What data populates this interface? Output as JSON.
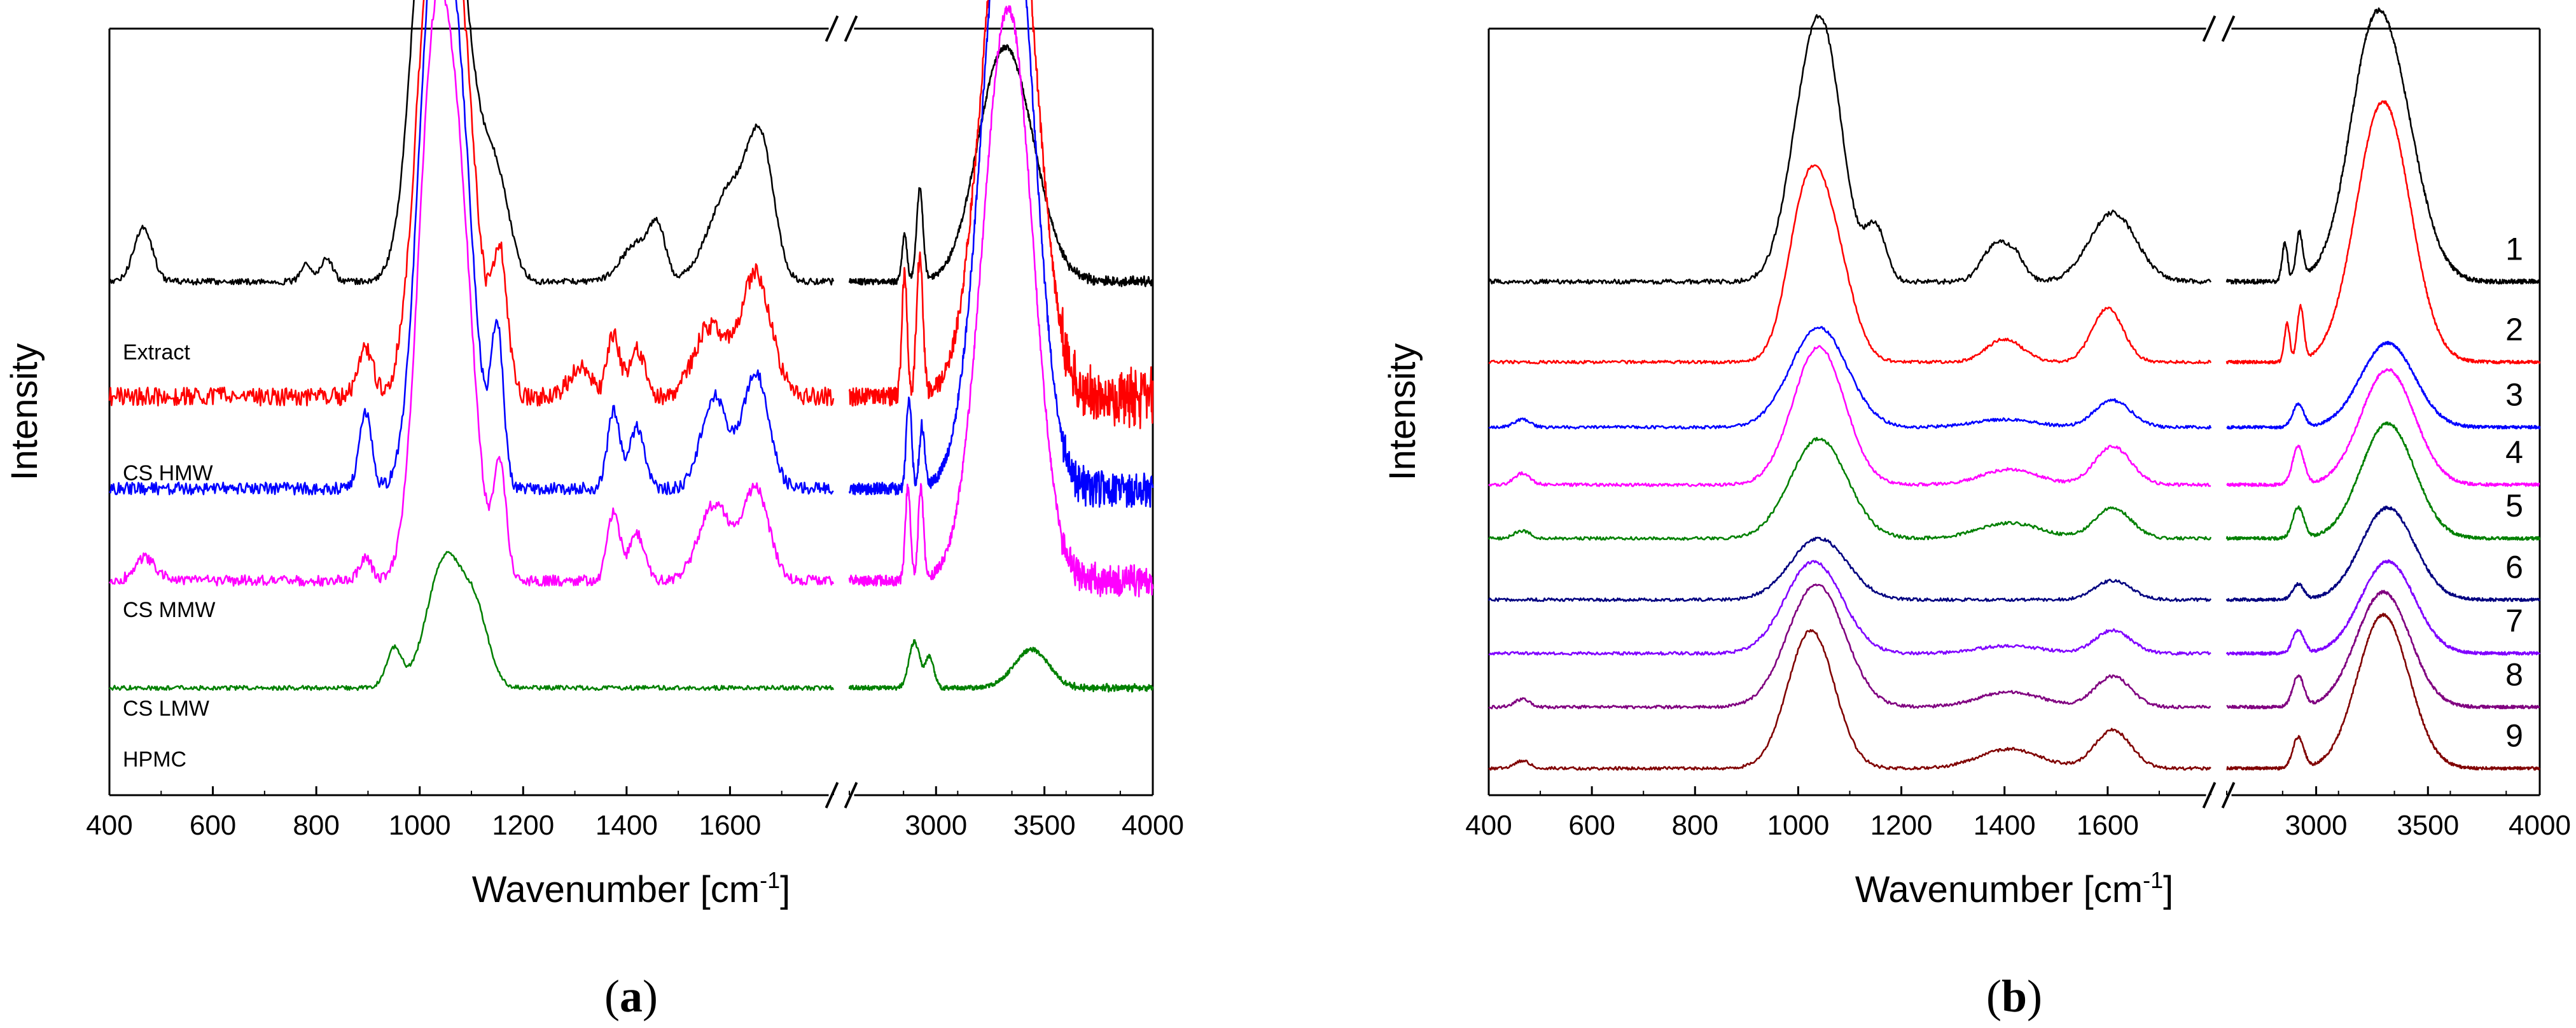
{
  "chart_data": [
    {
      "panel": "(a)",
      "panel_letter": "a",
      "type": "line",
      "xlabel": "Wavenumber [cm",
      "xlabel_sup": "-1",
      "xlabel_end": "]",
      "ylabel": "Intensity",
      "x_segments": [
        {
          "range": [
            400,
            1800
          ],
          "ticks": [
            400,
            600,
            800,
            1000,
            1200,
            1400,
            1600
          ]
        },
        {
          "range": [
            2600,
            4000
          ],
          "ticks": [
            3000,
            3500,
            4000
          ]
        }
      ],
      "axis_break": "//",
      "series": [
        {
          "name": "Extract",
          "color": "#000000",
          "baseline": 0.33,
          "noise": 0.004,
          "peaks": [
            [
              465,
              0.07,
              18
            ],
            [
              780,
              0.025,
              10
            ],
            [
              820,
              0.03,
              12
            ],
            [
              1025,
              0.62,
              35
            ],
            [
              1080,
              0.28,
              35
            ],
            [
              1150,
              0.12,
              25
            ],
            [
              1420,
              0.05,
              30
            ],
            [
              1460,
              0.06,
              15
            ],
            [
              1600,
              0.12,
              40
            ],
            [
              1660,
              0.16,
              25
            ],
            [
              2855,
              0.06,
              12
            ],
            [
              2925,
              0.12,
              15
            ],
            [
              3280,
              0.22,
              110
            ],
            [
              3400,
              0.13,
              110
            ]
          ]
        },
        {
          "name": "CS HMW",
          "color": "#ff0000",
          "baseline": 0.48,
          "noise": 0.012,
          "peaks": [
            [
              895,
              0.06,
              15
            ],
            [
              1025,
              0.58,
              32
            ],
            [
              1080,
              0.42,
              30
            ],
            [
              1155,
              0.18,
              15
            ],
            [
              1310,
              0.04,
              20
            ],
            [
              1375,
              0.08,
              12
            ],
            [
              1420,
              0.06,
              15
            ],
            [
              1560,
              0.09,
              30
            ],
            [
              1650,
              0.16,
              30
            ],
            [
              2855,
              0.16,
              12
            ],
            [
              2925,
              0.18,
              15
            ],
            [
              3300,
              0.5,
              110
            ],
            [
              3400,
              0.32,
              100
            ]
          ]
        },
        {
          "name": "CS MMW",
          "color": "#0000ff",
          "baseline": 0.6,
          "noise": 0.008,
          "peaks": [
            [
              895,
              0.1,
              12
            ],
            [
              1025,
              0.62,
              30
            ],
            [
              1075,
              0.45,
              30
            ],
            [
              1150,
              0.2,
              12
            ],
            [
              1375,
              0.1,
              12
            ],
            [
              1420,
              0.08,
              15
            ],
            [
              1570,
              0.12,
              25
            ],
            [
              1650,
              0.15,
              25
            ],
            [
              2875,
              0.12,
              12
            ],
            [
              2935,
              0.08,
              12
            ],
            [
              3300,
              0.55,
              110
            ],
            [
              3380,
              0.35,
              100
            ]
          ]
        },
        {
          "name": "CS LMW",
          "color": "#ff00ff",
          "baseline": 0.72,
          "noise": 0.007,
          "peaks": [
            [
              470,
              0.03,
              20
            ],
            [
              895,
              0.03,
              12
            ],
            [
              1025,
              0.62,
              30
            ],
            [
              1075,
              0.45,
              30
            ],
            [
              1155,
              0.15,
              12
            ],
            [
              1375,
              0.09,
              12
            ],
            [
              1420,
              0.06,
              15
            ],
            [
              1570,
              0.1,
              30
            ],
            [
              1650,
              0.12,
              25
            ],
            [
              2870,
              0.12,
              12
            ],
            [
              2930,
              0.12,
              12
            ],
            [
              3300,
              0.5,
              110
            ],
            [
              3380,
              0.3,
              100
            ]
          ]
        },
        {
          "name": "HPMC",
          "color": "#008000",
          "baseline": 0.86,
          "noise": 0.003,
          "peaks": [
            [
              950,
              0.05,
              15
            ],
            [
              1050,
              0.17,
              35
            ],
            [
              1110,
              0.08,
              25
            ],
            [
              2900,
              0.06,
              25
            ],
            [
              2970,
              0.04,
              20
            ],
            [
              3440,
              0.05,
              80
            ]
          ]
        }
      ]
    },
    {
      "panel": "(b)",
      "panel_letter": "b",
      "type": "line",
      "xlabel": "Wavenumber [cm",
      "xlabel_sup": "-1",
      "xlabel_end": "]",
      "ylabel": "Intensity",
      "x_segments": [
        {
          "range": [
            400,
            1800
          ],
          "ticks": [
            400,
            600,
            800,
            1000,
            1200,
            1400,
            1600
          ]
        },
        {
          "range": [
            2600,
            4000
          ],
          "ticks": [
            3000,
            3500,
            4000
          ]
        }
      ],
      "axis_break": "//",
      "series": [
        {
          "name": "1",
          "color": "#000000",
          "baseline": 0.33,
          "noise": 0.003,
          "peaks": [
            [
              1020,
              0.22,
              40
            ],
            [
              1060,
              0.18,
              35
            ],
            [
              1150,
              0.07,
              20
            ],
            [
              1380,
              0.045,
              25
            ],
            [
              1420,
              0.03,
              20
            ],
            [
              1610,
              0.09,
              45
            ],
            [
              2860,
              0.05,
              12
            ],
            [
              2925,
              0.06,
              15
            ],
            [
              3300,
              0.32,
              130
            ],
            [
              3220,
              0.05,
              80
            ]
          ]
        },
        {
          "name": "2",
          "color": "#ff0000",
          "baseline": 0.435,
          "noise": 0.002,
          "peaks": [
            [
              1010,
              0.16,
              35
            ],
            [
              1060,
              0.16,
              40
            ],
            [
              1400,
              0.03,
              35
            ],
            [
              1600,
              0.07,
              30
            ],
            [
              2870,
              0.05,
              12
            ],
            [
              2930,
              0.07,
              15
            ],
            [
              3300,
              0.34,
              120
            ]
          ]
        },
        {
          "name": "3",
          "color": "#0000ff",
          "baseline": 0.52,
          "noise": 0.002,
          "peaks": [
            [
              465,
              0.01,
              15
            ],
            [
              1040,
              0.13,
              55
            ],
            [
              1400,
              0.01,
              60
            ],
            [
              1610,
              0.035,
              35
            ],
            [
              2920,
              0.03,
              25
            ],
            [
              3320,
              0.11,
              120
            ]
          ]
        },
        {
          "name": "4",
          "color": "#ff00ff",
          "baseline": 0.595,
          "noise": 0.002,
          "peaks": [
            [
              465,
              0.015,
              15
            ],
            [
              1040,
              0.18,
              50
            ],
            [
              1410,
              0.02,
              55
            ],
            [
              1610,
              0.05,
              35
            ],
            [
              2920,
              0.05,
              25
            ],
            [
              3320,
              0.15,
              120
            ]
          ]
        },
        {
          "name": "5",
          "color": "#008000",
          "baseline": 0.665,
          "noise": 0.002,
          "peaks": [
            [
              465,
              0.01,
              15
            ],
            [
              1040,
              0.13,
              55
            ],
            [
              1410,
              0.02,
              60
            ],
            [
              1610,
              0.04,
              35
            ],
            [
              2920,
              0.04,
              25
            ],
            [
              3320,
              0.15,
              120
            ]
          ]
        },
        {
          "name": "6",
          "color": "#000080",
          "baseline": 0.745,
          "noise": 0.002,
          "peaks": [
            [
              1040,
              0.08,
              55
            ],
            [
              1610,
              0.025,
              35
            ],
            [
              2920,
              0.02,
              25
            ],
            [
              3320,
              0.12,
              120
            ]
          ]
        },
        {
          "name": "7",
          "color": "#8000ff",
          "baseline": 0.815,
          "noise": 0.002,
          "peaks": [
            [
              1030,
              0.12,
              55
            ],
            [
              1410,
              0.01,
              60
            ],
            [
              1610,
              0.03,
              35
            ],
            [
              2920,
              0.03,
              25
            ],
            [
              3320,
              0.12,
              120
            ]
          ]
        },
        {
          "name": "8",
          "color": "#800080",
          "baseline": 0.885,
          "noise": 0.002,
          "peaks": [
            [
              465,
              0.01,
              15
            ],
            [
              1035,
              0.16,
              55
            ],
            [
              1410,
              0.02,
              60
            ],
            [
              1610,
              0.04,
              35
            ],
            [
              2920,
              0.04,
              25
            ],
            [
              3300,
              0.15,
              120
            ]
          ]
        },
        {
          "name": "9",
          "color": "#800000",
          "baseline": 0.965,
          "noise": 0.002,
          "peaks": [
            [
              465,
              0.01,
              15
            ],
            [
              1025,
              0.18,
              45
            ],
            [
              1410,
              0.025,
              60
            ],
            [
              1610,
              0.05,
              35
            ],
            [
              2920,
              0.04,
              25
            ],
            [
              3300,
              0.2,
              115
            ]
          ]
        }
      ]
    }
  ]
}
